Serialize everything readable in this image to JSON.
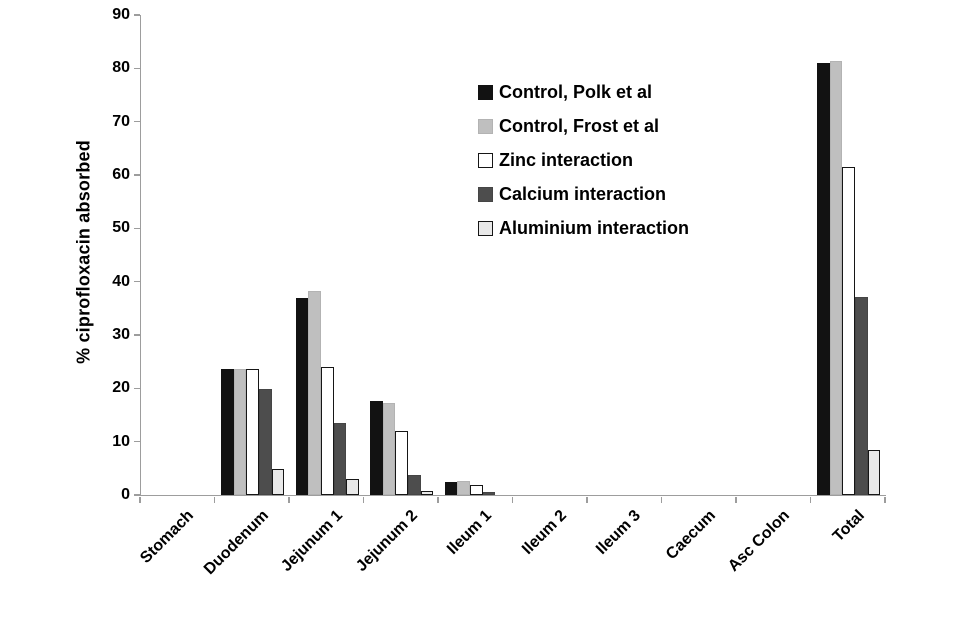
{
  "chart_data": {
    "type": "bar",
    "title": "",
    "xlabel": "",
    "ylabel": "% ciprofloxacin absorbed",
    "ylim": [
      0,
      90
    ],
    "yticks": [
      0,
      10,
      20,
      30,
      40,
      50,
      60,
      70,
      80,
      90
    ],
    "grid": false,
    "legend_position": "inside-upper-center",
    "categories": [
      "Stomach",
      "Duodenum",
      "Jejunum 1",
      "Jejunum 2",
      "Ileum 1",
      "Ileum 2",
      "Ileum 3",
      "Caecum",
      "Asc Colon",
      "Total"
    ],
    "series": [
      {
        "name": "Control, Polk et al",
        "fill": "#121212",
        "border": "#121212",
        "values": [
          0,
          23.7,
          37,
          17.6,
          2.5,
          0,
          0,
          0,
          0,
          81
        ]
      },
      {
        "name": "Control, Frost et al",
        "fill": "#bfbfbf",
        "border": "#b3b3b3",
        "values": [
          0,
          23.7,
          38.2,
          17.2,
          2.6,
          0,
          0,
          0,
          0,
          81.3
        ]
      },
      {
        "name": "Zinc interaction",
        "fill": "#ffffff",
        "border": "#161616",
        "values": [
          0,
          23.7,
          24,
          12,
          1.8,
          0,
          0,
          0,
          0,
          61.5
        ]
      },
      {
        "name": "Calcium interaction",
        "fill": "#4d4d4d",
        "border": "#454545",
        "values": [
          0,
          19.8,
          13.5,
          3.7,
          0.5,
          0,
          0,
          0,
          0,
          37.2
        ]
      },
      {
        "name": "Aluminium interaction",
        "fill": "#e9e9e9",
        "border": "#161616",
        "values": [
          0,
          4.8,
          3,
          0.7,
          0,
          0,
          0,
          0,
          0,
          8.4
        ]
      }
    ]
  },
  "colors": {
    "axis_line": "#9d9d9d",
    "text": "#000000",
    "background": "#ffffff"
  }
}
